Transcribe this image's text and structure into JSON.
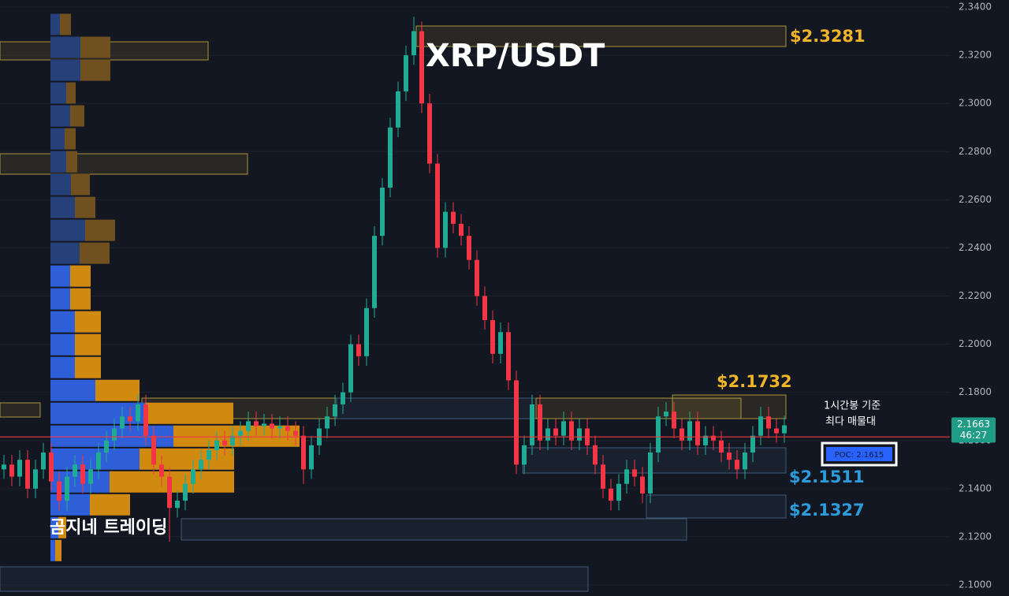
{
  "chart_data": {
    "type": "candlestick",
    "title": "XRP/USDT",
    "watermark": "곰지네 트레이딩",
    "ylim": [
      2.1,
      2.34
    ],
    "yticks": [
      {
        "value": 2.1,
        "label": "2.1000"
      },
      {
        "value": 2.12,
        "label": "2.1200"
      },
      {
        "value": 2.14,
        "label": "2.1400"
      },
      {
        "value": 2.16,
        "label": "2.1600"
      },
      {
        "value": 2.18,
        "label": "2.1800"
      },
      {
        "value": 2.2,
        "label": "2.2000"
      },
      {
        "value": 2.22,
        "label": "2.2200"
      },
      {
        "value": 2.24,
        "label": "2.2400"
      },
      {
        "value": 2.26,
        "label": "2.2600"
      },
      {
        "value": 2.28,
        "label": "2.2800"
      },
      {
        "value": 2.3,
        "label": "2.3000"
      },
      {
        "value": 2.32,
        "label": "2.3200"
      },
      {
        "value": 2.34,
        "label": "2.3400"
      }
    ],
    "grid": true,
    "up_color": "#22ab94",
    "down_color": "#f23645",
    "open": [
      2.148,
      2.15,
      2.145,
      2.152,
      2.14,
      2.148,
      2.155,
      2.143,
      2.135,
      2.145,
      2.15,
      2.142,
      2.148,
      2.155,
      2.16,
      2.165,
      2.17,
      2.168,
      2.175,
      2.162,
      2.15,
      2.145,
      2.132,
      2.135,
      2.142,
      2.148,
      2.152,
      2.156,
      2.16,
      2.158,
      2.162,
      2.164,
      2.168,
      2.166,
      2.167,
      2.165,
      2.166,
      2.164,
      2.162,
      2.148,
      2.158,
      2.165,
      2.17,
      2.175,
      2.18,
      2.2,
      2.195,
      2.215,
      2.245,
      2.265,
      2.29,
      2.305,
      2.32,
      2.33,
      2.3,
      2.275,
      2.24,
      2.255,
      2.25,
      2.245,
      2.235,
      2.22,
      2.21,
      2.196,
      2.205,
      2.185,
      2.15,
      2.158,
      2.175,
      2.16,
      2.165,
      2.162,
      2.168,
      2.16,
      2.165,
      2.158,
      2.15,
      2.14,
      2.135,
      2.142,
      2.148,
      2.145,
      2.138,
      2.155,
      2.17,
      2.172,
      2.165,
      2.16,
      2.168,
      2.158,
      2.162,
      2.16,
      2.155,
      2.152,
      2.148,
      2.155,
      2.162,
      2.17,
      2.165,
      2.163
    ],
    "high": [
      2.154,
      2.154,
      2.156,
      2.156,
      2.152,
      2.159,
      2.159,
      2.147,
      2.149,
      2.154,
      2.154,
      2.152,
      2.159,
      2.164,
      2.169,
      2.174,
      2.174,
      2.179,
      2.179,
      2.166,
      2.154,
      2.149,
      2.139,
      2.146,
      2.152,
      2.156,
      2.16,
      2.164,
      2.164,
      2.166,
      2.168,
      2.172,
      2.172,
      2.171,
      2.171,
      2.17,
      2.17,
      2.168,
      2.166,
      2.162,
      2.169,
      2.174,
      2.179,
      2.184,
      2.204,
      2.204,
      2.219,
      2.249,
      2.269,
      2.294,
      2.309,
      2.324,
      2.336,
      2.334,
      2.304,
      2.279,
      2.259,
      2.259,
      2.254,
      2.249,
      2.239,
      2.224,
      2.214,
      2.209,
      2.209,
      2.189,
      2.162,
      2.179,
      2.179,
      2.169,
      2.169,
      2.172,
      2.172,
      2.169,
      2.169,
      2.162,
      2.154,
      2.144,
      2.146,
      2.152,
      2.152,
      2.149,
      2.159,
      2.174,
      2.176,
      2.176,
      2.169,
      2.172,
      2.172,
      2.166,
      2.166,
      2.164,
      2.159,
      2.156,
      2.159,
      2.166,
      2.174,
      2.174,
      2.169,
      2.1703
    ],
    "low": [
      2.144,
      2.141,
      2.141,
      2.136,
      2.136,
      2.144,
      2.139,
      2.131,
      2.131,
      2.141,
      2.138,
      2.138,
      2.144,
      2.151,
      2.156,
      2.161,
      2.164,
      2.164,
      2.158,
      2.146,
      2.141,
      2.118,
      2.128,
      2.131,
      2.138,
      2.144,
      2.148,
      2.152,
      2.154,
      2.154,
      2.158,
      2.16,
      2.162,
      2.162,
      2.161,
      2.161,
      2.16,
      2.158,
      2.142,
      2.144,
      2.154,
      2.161,
      2.166,
      2.171,
      2.176,
      2.191,
      2.191,
      2.211,
      2.241,
      2.261,
      2.286,
      2.301,
      2.316,
      2.296,
      2.271,
      2.236,
      2.236,
      2.246,
      2.241,
      2.231,
      2.216,
      2.206,
      2.192,
      2.192,
      2.181,
      2.146,
      2.146,
      2.154,
      2.156,
      2.156,
      2.158,
      2.158,
      2.156,
      2.156,
      2.154,
      2.146,
      2.136,
      2.131,
      2.131,
      2.138,
      2.141,
      2.134,
      2.134,
      2.151,
      2.166,
      2.161,
      2.156,
      2.156,
      2.154,
      2.154,
      2.156,
      2.151,
      2.148,
      2.144,
      2.144,
      2.151,
      2.158,
      2.161,
      2.159,
      2.159
    ],
    "close": [
      2.15,
      2.145,
      2.152,
      2.14,
      2.148,
      2.155,
      2.143,
      2.135,
      2.145,
      2.15,
      2.142,
      2.148,
      2.155,
      2.16,
      2.165,
      2.17,
      2.168,
      2.175,
      2.162,
      2.15,
      2.145,
      2.132,
      2.135,
      2.142,
      2.148,
      2.152,
      2.156,
      2.16,
      2.158,
      2.162,
      2.164,
      2.168,
      2.166,
      2.167,
      2.165,
      2.166,
      2.164,
      2.162,
      2.148,
      2.158,
      2.165,
      2.17,
      2.175,
      2.18,
      2.2,
      2.195,
      2.215,
      2.245,
      2.265,
      2.29,
      2.305,
      2.32,
      2.33,
      2.3,
      2.275,
      2.24,
      2.255,
      2.25,
      2.245,
      2.235,
      2.22,
      2.21,
      2.196,
      2.205,
      2.185,
      2.15,
      2.158,
      2.175,
      2.16,
      2.165,
      2.162,
      2.168,
      2.16,
      2.165,
      2.158,
      2.15,
      2.14,
      2.135,
      2.142,
      2.148,
      2.145,
      2.138,
      2.155,
      2.17,
      2.172,
      2.165,
      2.16,
      2.168,
      2.158,
      2.162,
      2.16,
      2.155,
      2.152,
      2.148,
      2.155,
      2.162,
      2.17,
      2.165,
      2.163,
      2.1663
    ],
    "last_price": 2.1663,
    "countdown": "46:27",
    "poc": 2.1615,
    "poc_label": "POC: 2.1615",
    "volume_profile": {
      "levels": [
        2.3328,
        2.3233,
        2.3138,
        2.3043,
        2.2948,
        2.2853,
        2.2758,
        2.2663,
        2.2568,
        2.2473,
        2.2378,
        2.2283,
        2.2188,
        2.2093,
        2.1998,
        2.1903,
        2.1808,
        2.1713,
        2.1618,
        2.1523,
        2.1428,
        2.1333,
        2.1238,
        2.1143
      ],
      "buy": [
        12,
        38,
        38,
        20,
        25,
        18,
        20,
        26,
        31,
        44,
        37,
        25,
        25,
        31,
        31,
        31,
        57,
        120,
        156,
        113,
        75,
        50,
        10,
        6
      ],
      "sell": [
        14,
        38,
        38,
        12,
        18,
        14,
        14,
        24,
        26,
        38,
        38,
        26,
        26,
        33,
        33,
        33,
        56,
        112,
        160,
        120,
        158,
        51,
        10,
        8
      ],
      "value_area": [
        2.11,
        2.233
      ],
      "buy_color": "#2f5fd8",
      "sell_color": "#d08a10",
      "buy_color_dim": "#26407a",
      "sell_color_dim": "#71501f"
    },
    "annotations": [
      "$2.3281",
      "$2.1732",
      "$2.1511",
      "$2.1327",
      "1시간봉 기준",
      "최다 매물대"
    ]
  }
}
